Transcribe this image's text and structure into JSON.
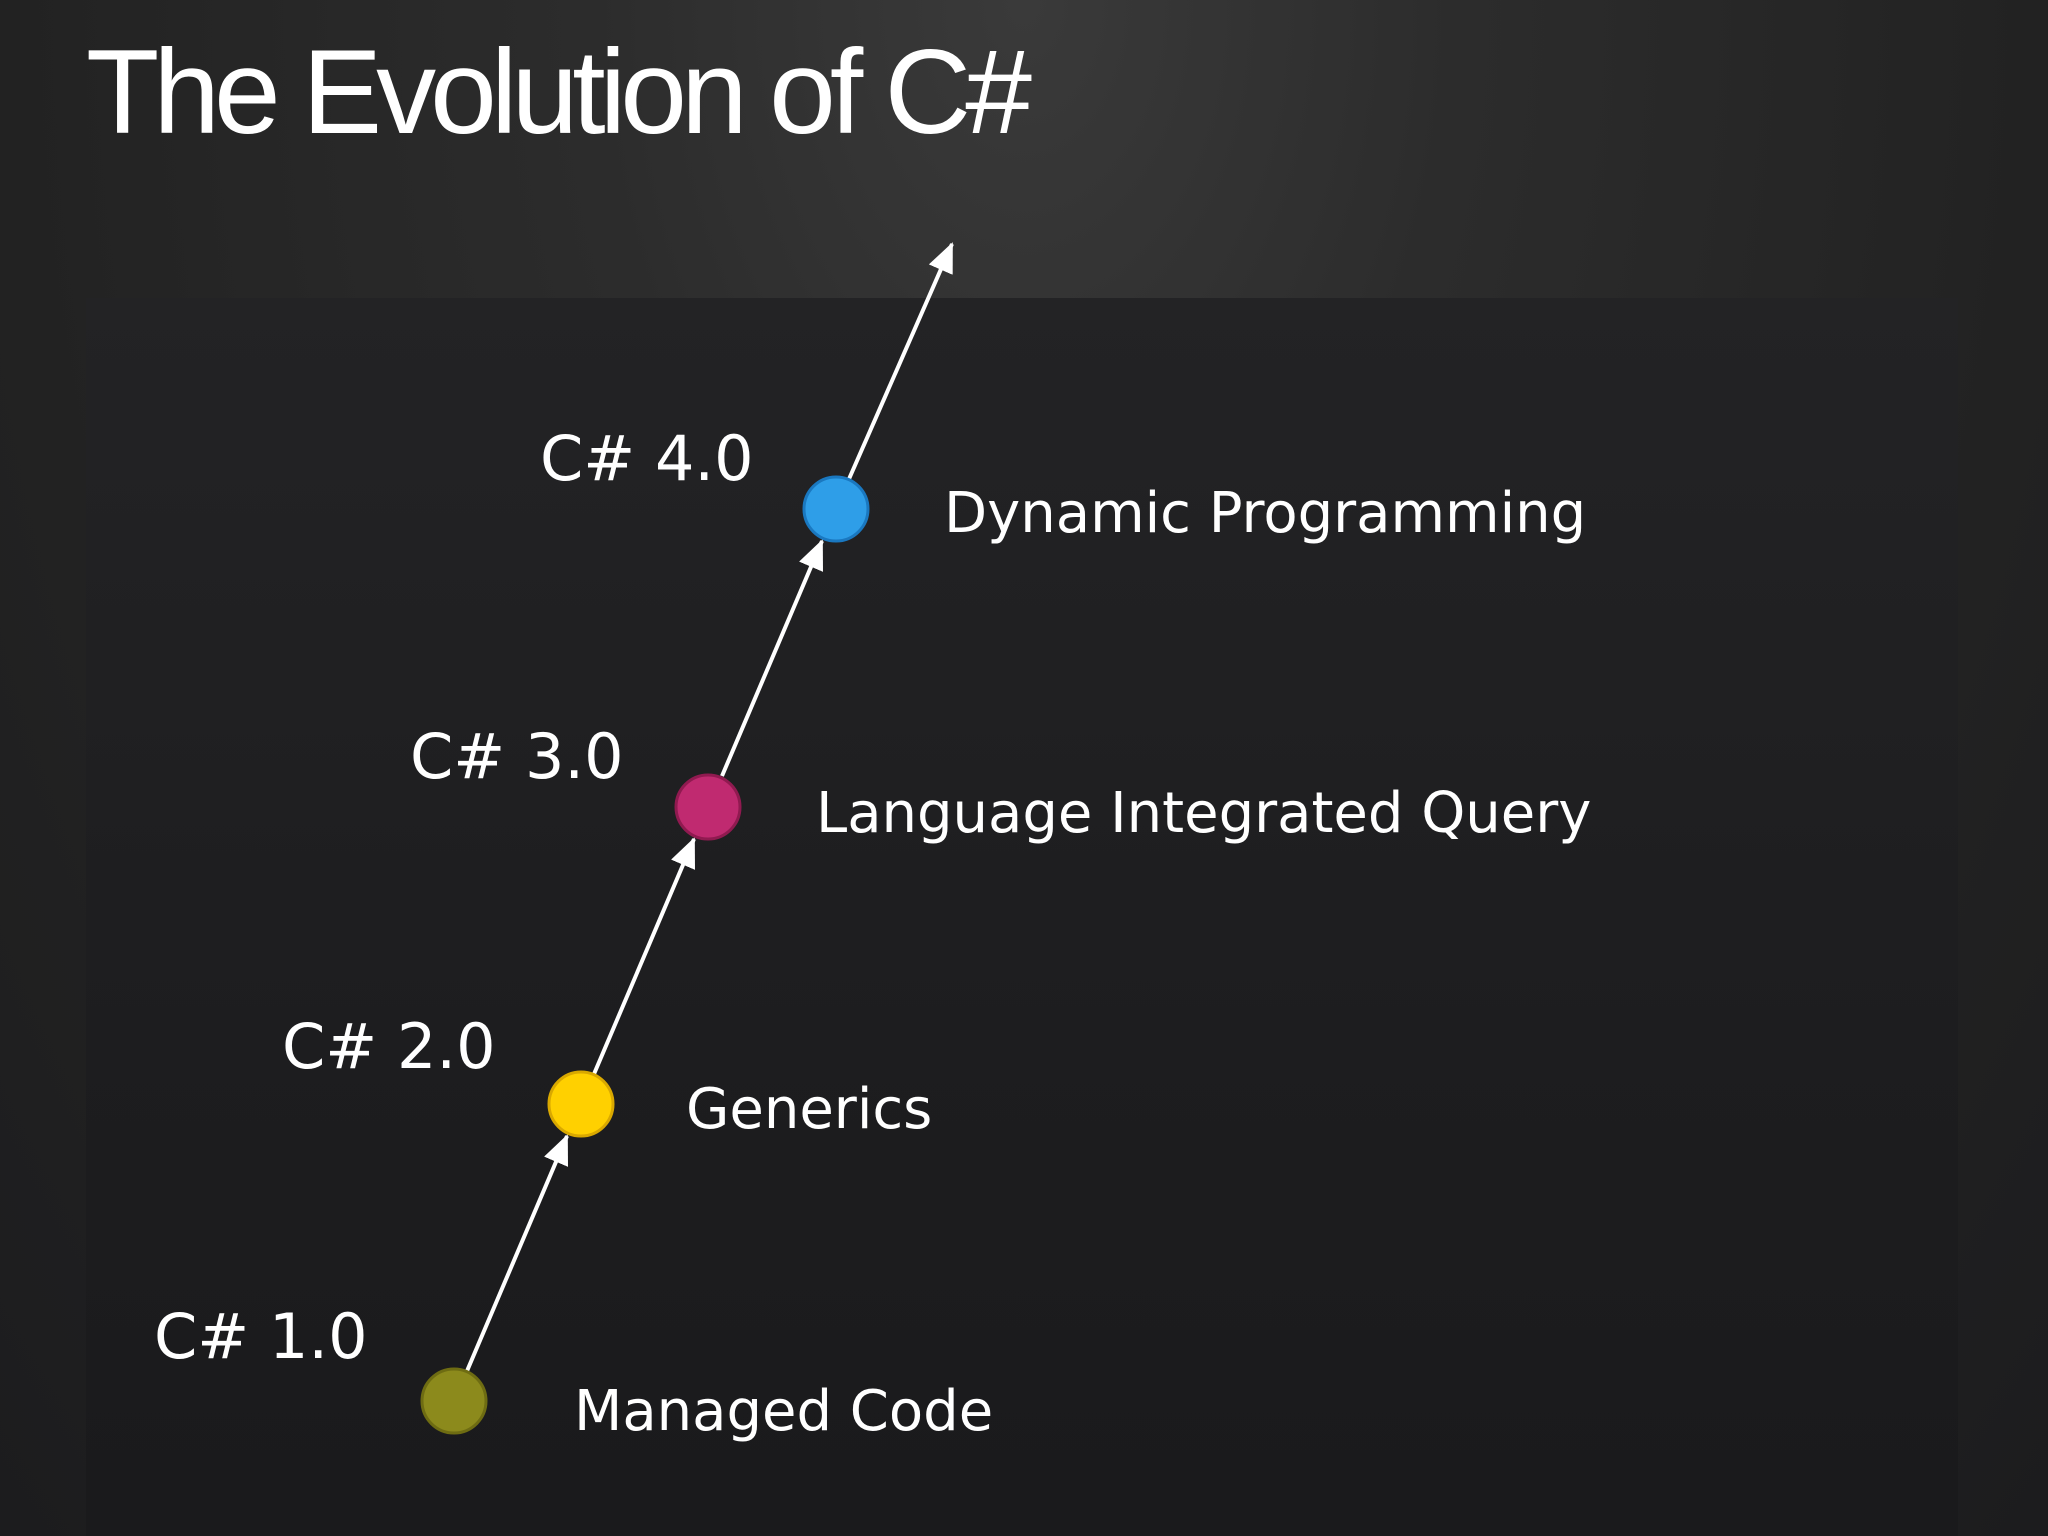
{
  "slide": {
    "title": "The Evolution of C#"
  },
  "timeline": [
    {
      "version": "C# 1.0",
      "feature": "Managed Code",
      "color": "#8c8a1c"
    },
    {
      "version": "C# 2.0",
      "feature": "Generics",
      "color": "#ffd000"
    },
    {
      "version": "C# 3.0",
      "feature": "Language Integrated Query",
      "color": "#c02a70"
    },
    {
      "version": "C# 4.0",
      "feature": "Dynamic Programming",
      "color": "#2e9ee8"
    }
  ],
  "colors": {
    "arrow": "#ffffff",
    "background": "#2a2a2a"
  }
}
